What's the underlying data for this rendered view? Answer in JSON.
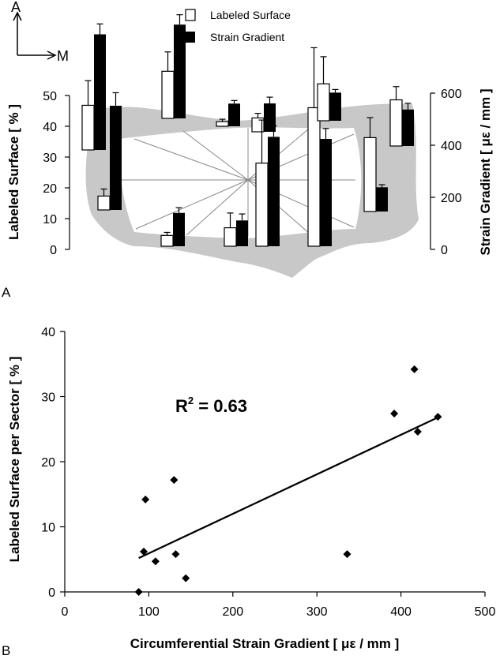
{
  "colors": {
    "bone": "#c8c8c8",
    "bar_labeled": "#ffffff",
    "bar_strain": "#000000"
  },
  "panel_a": {
    "panel_label": "A",
    "orientation": {
      "up_label": "A",
      "right_label": "M"
    },
    "legend": {
      "labeled": "Labeled Surface",
      "strain": "Strain Gradient"
    },
    "left_axis": {
      "label": "Labeled Surface [ % ]",
      "ticks": [
        "0",
        "10",
        "20",
        "30",
        "40",
        "50"
      ]
    },
    "right_axis": {
      "label": "Strain Gradient [ με / mm ]",
      "ticks": [
        "0",
        "200",
        "400",
        "600"
      ]
    }
  },
  "panel_b": {
    "panel_label": "B",
    "annotation": "R² = 0.63",
    "annotation_main": "R",
    "annotation_sup": "2",
    "annotation_rest": " = 0.63",
    "xlabel": "Circumferential Strain Gradient [ με / mm ]",
    "ylabel": "Labeled Surface per Sector [ % ]",
    "xticks": [
      "0",
      "100",
      "200",
      "300",
      "400",
      "500"
    ],
    "yticks": [
      "0",
      "10",
      "20",
      "30",
      "40"
    ]
  },
  "chart_data": [
    {
      "type": "bar",
      "title": "",
      "series": [
        {
          "name": "Labeled Surface",
          "axis": "left",
          "units": "%",
          "values": [
            14.5,
            4.5,
            15.3,
            3.5,
            1.5,
            6.0,
            4.5,
            27.0,
            45.0,
            12.0,
            24.0,
            15.0
          ],
          "errors": [
            8.0,
            2.3,
            6.3,
            1.0,
            0.8,
            4.8,
            1.5,
            14.0,
            19.5,
            8.8,
            6.5,
            4.3
          ]
        },
        {
          "name": "Strain Gradient",
          "axis": "right",
          "units": "με/mm",
          "values": [
            444,
            400,
            360,
            128,
            87,
            99,
            109,
            420,
            412,
            108,
            93,
            140
          ],
          "errors": [
            40,
            50,
            38,
            20,
            12,
            25,
            24,
            42,
            40,
            12,
            10,
            24
          ]
        }
      ],
      "left_ylim": [
        0,
        50
      ],
      "right_ylim": [
        0,
        600
      ]
    },
    {
      "type": "scatter",
      "x": [
        88,
        94,
        96,
        108,
        130,
        132,
        144,
        336,
        392,
        416,
        420,
        444
      ],
      "y": [
        0,
        6.2,
        14.2,
        4.7,
        17.2,
        5.8,
        2.1,
        5.8,
        27.4,
        34.2,
        24.6,
        26.9
      ],
      "fit": {
        "type": "linear",
        "x": [
          88,
          444
        ],
        "y": [
          5.2,
          26.8
        ]
      },
      "xlim": [
        0,
        500
      ],
      "ylim": [
        0,
        40
      ],
      "xlabel": "Circumferential Strain Gradient [ με / mm ]",
      "ylabel": "Labeled Surface per Sector [ % ]"
    }
  ]
}
